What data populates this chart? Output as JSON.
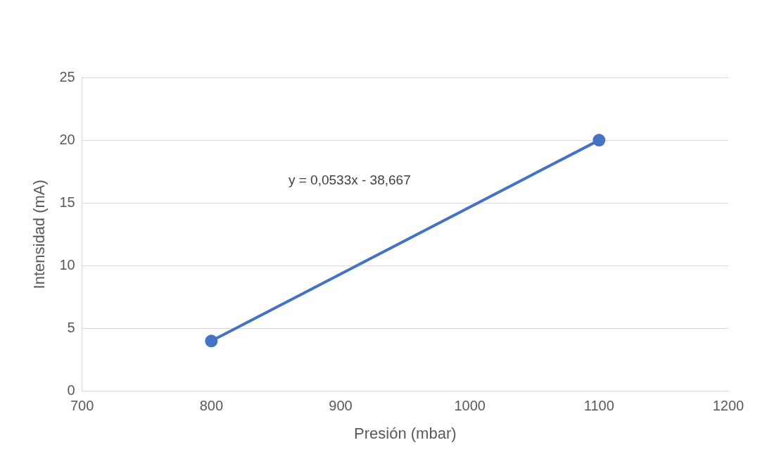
{
  "chart_data": {
    "type": "line",
    "xlabel": "Presión (mbar)",
    "ylabel": "Intensidad (mA)",
    "x": [
      800,
      1100
    ],
    "series": [
      {
        "color": "#4472c4",
        "values": [
          4,
          20
        ]
      }
    ],
    "xlim": [
      700,
      1200
    ],
    "xticks": [
      700,
      800,
      900,
      1000,
      1100,
      1200
    ],
    "ylim": [
      0,
      25
    ],
    "yticks": [
      0,
      5,
      10,
      15,
      20,
      25
    ],
    "grid": "y",
    "legend": false,
    "marker": "circle",
    "line_style": "solid",
    "annotations": [
      "y = 0,0533x - 38,667"
    ]
  }
}
